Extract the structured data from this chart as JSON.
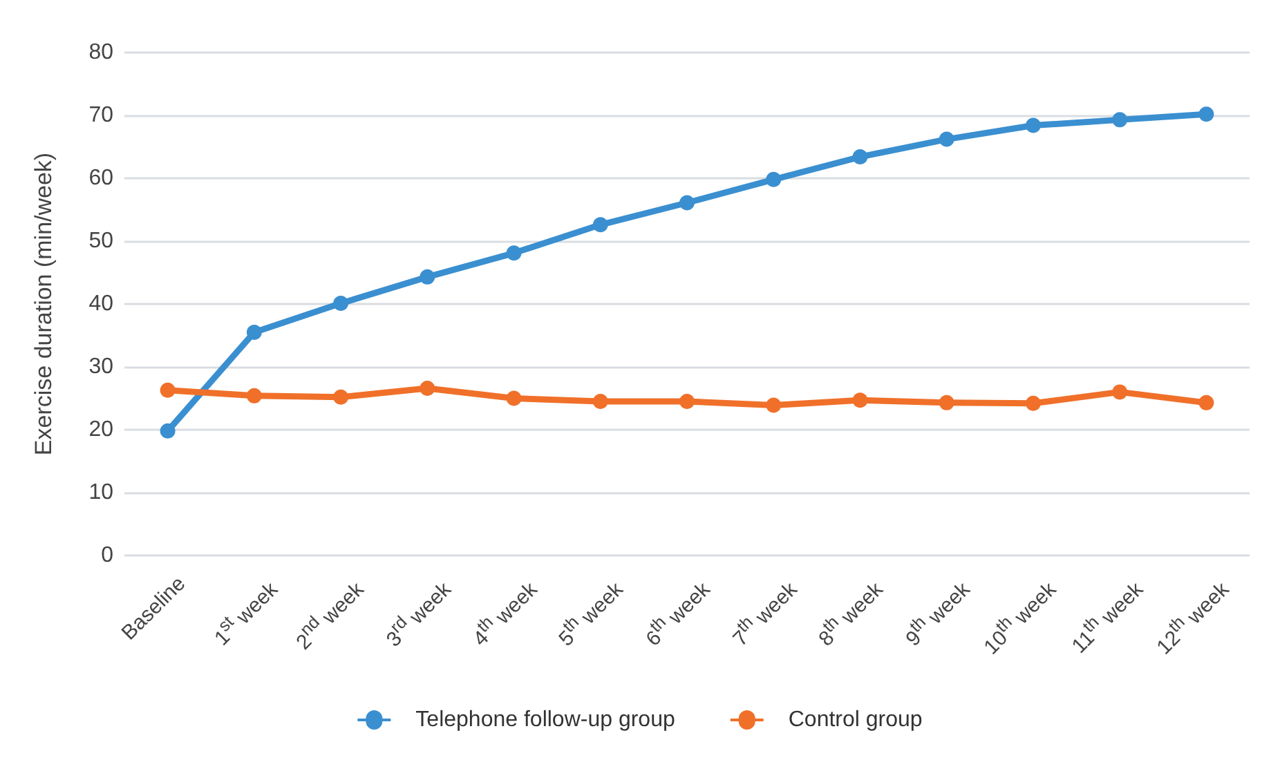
{
  "chart_data": {
    "type": "line",
    "ylabel": "Exercise duration (min/week)",
    "categories": [
      "Baseline",
      "1$^{st}$ week",
      "2$^{nd}$ week",
      "3$^{rd}$ week",
      "4$^{th}$ week",
      "5$^{th}$ week",
      "6$^{th}$ week",
      "7$^{th}$ week",
      "8$^{th}$ week",
      "9$^{th}$ week",
      "10$^{th}$ week",
      "11$^{th}$ week",
      "12$^{th}$ week"
    ],
    "series": [
      {
        "name": "Telephone follow-up group",
        "color": "#3a8fd0",
        "values": [
          19.8,
          35.5,
          40.1,
          44.3,
          48.1,
          52.6,
          56.1,
          59.8,
          63.4,
          66.2,
          68.4,
          69.3,
          70.2
        ]
      },
      {
        "name": "Control group",
        "color": "#f0702a",
        "values": [
          26.3,
          25.4,
          25.2,
          26.6,
          25.0,
          24.5,
          24.5,
          23.9,
          24.7,
          24.3,
          24.2,
          26.0,
          24.3
        ]
      }
    ],
    "ylim": [
      0,
      80
    ],
    "yticks": [
      0,
      10,
      20,
      30,
      40,
      50,
      60,
      70,
      80
    ],
    "grid": "y",
    "legend": "bottom",
    "marker": "circle",
    "line_style": "solid"
  }
}
